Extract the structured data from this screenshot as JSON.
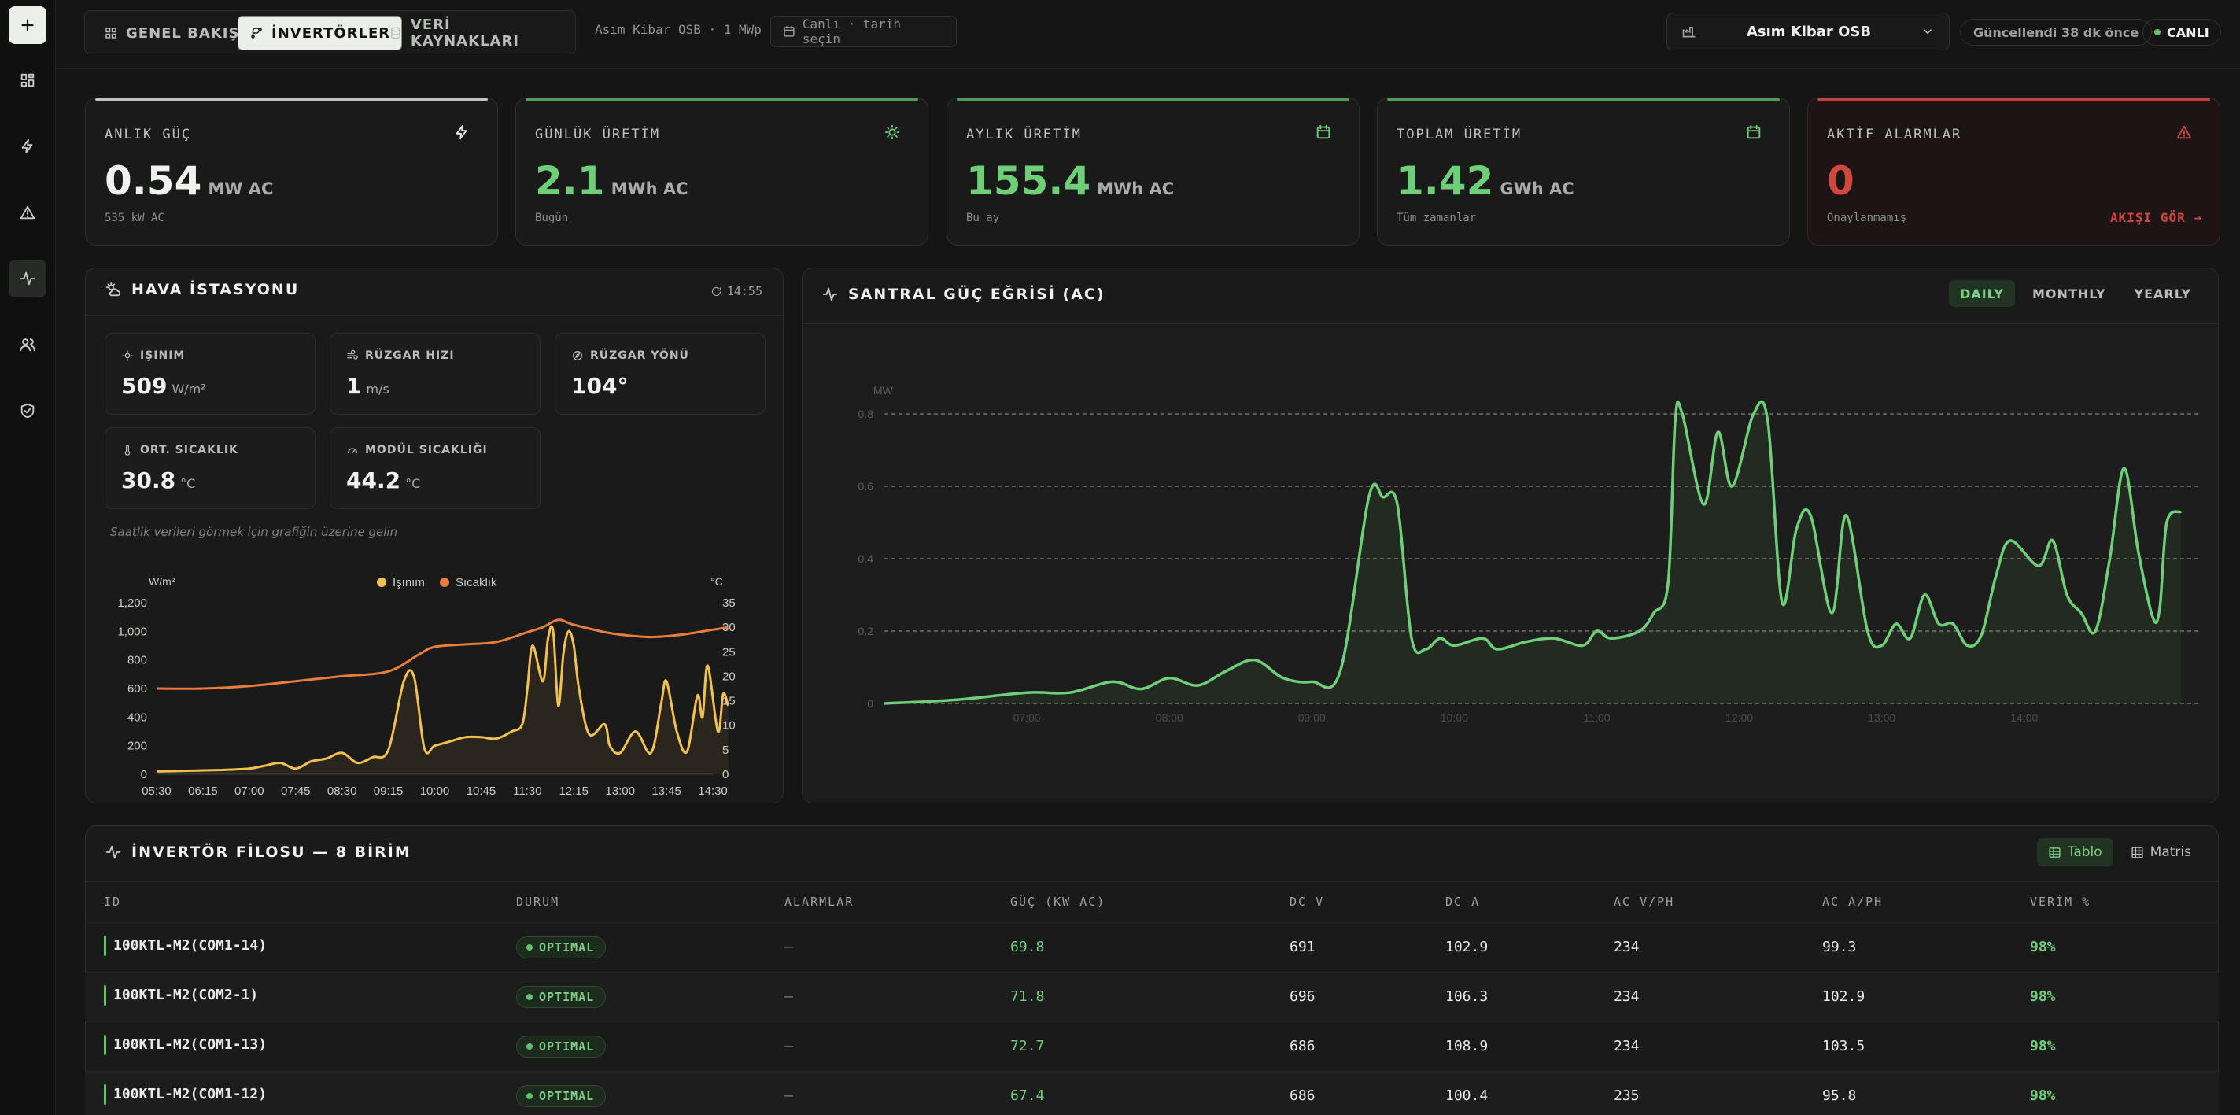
{
  "header": {
    "tabs": [
      {
        "label": "GENEL BAKIŞ",
        "icon": "grid-icon"
      },
      {
        "label": "İNVERTÖRLER",
        "icon": "branch-icon",
        "active": true
      },
      {
        "label": "VERİ KAYNAKLARI",
        "icon": "database-icon"
      }
    ],
    "site_info": "Asım Kibar OSB · 1 MWp",
    "date_filter": "Canlı · tarih seçin",
    "plant_select": "Asım Kibar OSB",
    "updated": "Güncellendi 38 dk önce",
    "live": "CANLI"
  },
  "kpis": [
    {
      "title": "ANLIK GÜÇ",
      "value": "0.54",
      "unit": "MW AC",
      "sub": "535 kW AC",
      "icon": "bolt-icon",
      "color": "#f0f2ef"
    },
    {
      "title": "GÜNLÜK ÜRETİM",
      "value": "2.1",
      "unit": "MWh AC",
      "sub": "Bugün",
      "icon": "sun-icon",
      "color": "#6fcf79"
    },
    {
      "title": "AYLIK ÜRETİM",
      "value": "155.4",
      "unit": "MWh AC",
      "sub": "Bu ay",
      "icon": "calendar-icon",
      "color": "#6fcf79"
    },
    {
      "title": "TOPLAM ÜRETİM",
      "value": "1.42",
      "unit": "GWh AC",
      "sub": "Tüm zamanlar",
      "icon": "calendar-icon",
      "color": "#6fcf79"
    },
    {
      "title": "AKTİF ALARMLAR",
      "value": "0",
      "unit": "",
      "sub": "Onaylanmamış",
      "link": "AKIŞI GÖR →",
      "icon": "alert-icon",
      "color": "#d1463f"
    }
  ],
  "weather": {
    "title": "HAVA İSTASYONU",
    "time": "14:55",
    "cards": [
      {
        "label": "IŞINIM",
        "value": "509",
        "unit": "W/m²",
        "icon": "sun-icon"
      },
      {
        "label": "RÜZGAR HIZI",
        "value": "1",
        "unit": "m/s",
        "icon": "wind-icon"
      },
      {
        "label": "RÜZGAR YÖNÜ",
        "value": "104°",
        "unit": "",
        "icon": "compass-icon"
      },
      {
        "label": "ORT. SICAKLIK",
        "value": "30.8",
        "unit": "°C",
        "icon": "thermometer-icon"
      },
      {
        "label": "MODÜL SICAKLIĞI",
        "value": "44.2",
        "unit": "°C",
        "icon": "gauge-icon"
      }
    ],
    "hint": "Saatlik verileri görmek için grafiğin üzerine gelin"
  },
  "power_curve": {
    "title": "SANTRAL GÜÇ EĞRİSİ (AC)",
    "range_tabs": [
      "DAILY",
      "MONTHLY",
      "YEARLY"
    ],
    "active_range": "DAILY"
  },
  "fleet": {
    "title": "İNVERTÖR FİLOSU — 8 BİRİM",
    "view_tabs": [
      "Tablo",
      "Matris"
    ],
    "columns": [
      "ID",
      "DURUM",
      "ALARMLAR",
      "GÜÇ (KW AC)",
      "DC V",
      "DC A",
      "AC V/PH",
      "AC A/PH",
      "VERİM %"
    ],
    "rows": [
      [
        "100KTL-M2(COM1-14)",
        "OPTIMAL",
        "—",
        "69.8",
        "691",
        "102.9",
        "234",
        "99.3",
        "98%"
      ],
      [
        "100KTL-M2(COM2-1)",
        "OPTIMAL",
        "—",
        "71.8",
        "696",
        "106.3",
        "234",
        "102.9",
        "98%"
      ],
      [
        "100KTL-M2(COM1-13)",
        "OPTIMAL",
        "—",
        "72.7",
        "686",
        "108.9",
        "234",
        "103.5",
        "98%"
      ],
      [
        "100KTL-M2(COM1-12)",
        "OPTIMAL",
        "—",
        "67.4",
        "686",
        "100.4",
        "235",
        "95.8",
        "98%"
      ]
    ]
  },
  "chart_data": [
    {
      "type": "line",
      "title": "",
      "legend": [
        "Işınım",
        "Sıcaklık"
      ],
      "y_left_label": "W/m²",
      "y_right_label": "°C",
      "ylim_left": [
        0,
        1200
      ],
      "ylim_right": [
        0,
        35
      ],
      "x_ticks": [
        "05:30",
        "06:15",
        "07:00",
        "07:45",
        "08:30",
        "09:15",
        "10:00",
        "10:45",
        "11:30",
        "12:15",
        "13:00",
        "13:45",
        "14:30"
      ],
      "y_left_ticks": [
        "0",
        "200",
        "400",
        "600",
        "800",
        "1,000",
        "1,200"
      ],
      "y_right_ticks": [
        "0",
        "5",
        "10",
        "15",
        "20",
        "25",
        "30",
        "35"
      ],
      "series": [
        {
          "name": "Işınım",
          "color": "#f2c04e",
          "x": [
            "05:30",
            "06:00",
            "06:30",
            "07:00",
            "07:15",
            "07:30",
            "07:45",
            "08:00",
            "08:15",
            "08:30",
            "08:45",
            "09:00",
            "09:15",
            "09:30",
            "09:40",
            "09:50",
            "10:00",
            "10:15",
            "10:30",
            "10:45",
            "11:00",
            "11:15",
            "11:25",
            "11:30",
            "11:35",
            "11:45",
            "11:50",
            "11:55",
            "12:00",
            "12:05",
            "12:10",
            "12:15",
            "12:20",
            "12:30",
            "12:45",
            "12:50",
            "13:00",
            "13:15",
            "13:30",
            "13:40",
            "13:45",
            "13:55",
            "14:05",
            "14:15",
            "14:20",
            "14:25",
            "14:35",
            "14:40",
            "14:45"
          ],
          "values": [
            20,
            25,
            30,
            40,
            60,
            80,
            40,
            90,
            110,
            150,
            80,
            120,
            170,
            650,
            680,
            180,
            200,
            230,
            260,
            260,
            250,
            300,
            350,
            600,
            900,
            650,
            950,
            1000,
            480,
            850,
            1000,
            900,
            600,
            280,
            350,
            200,
            150,
            300,
            150,
            500,
            650,
            300,
            160,
            550,
            400,
            760,
            300,
            560,
            480
          ]
        },
        {
          "name": "Sıcaklık",
          "color": "#e87d3e",
          "x": [
            "05:30",
            "06:15",
            "07:00",
            "07:45",
            "08:30",
            "09:15",
            "09:45",
            "10:00",
            "10:30",
            "11:00",
            "11:30",
            "11:45",
            "12:00",
            "12:15",
            "12:45",
            "13:00",
            "13:30",
            "14:00",
            "14:30",
            "14:45"
          ],
          "values": [
            17.5,
            17.5,
            18,
            19,
            20,
            21,
            24.5,
            26,
            26.5,
            27,
            29,
            30,
            31.5,
            30.5,
            29,
            28.5,
            28,
            28.5,
            29.5,
            30
          ]
        }
      ]
    },
    {
      "type": "area",
      "title": "SANTRAL GÜÇ EĞRİSİ (AC)",
      "ylabel": "MW",
      "ylim": [
        0,
        0.8
      ],
      "y_ticks": [
        "0",
        "0.2",
        "0.4",
        "0.6",
        "0.8"
      ],
      "x_ticks": [
        "07:00",
        "08:00",
        "09:00",
        "10:00",
        "11:00",
        "12:00",
        "13:00",
        "14:00"
      ],
      "series": [
        {
          "name": "",
          "color": "#6fcf79",
          "x": [
            6.0,
            6.5,
            7.0,
            7.3,
            7.6,
            7.8,
            8.0,
            8.2,
            8.4,
            8.6,
            8.8,
            9.0,
            9.2,
            9.4,
            9.5,
            9.6,
            9.7,
            9.8,
            9.9,
            10.0,
            10.2,
            10.3,
            10.5,
            10.7,
            10.9,
            11.0,
            11.1,
            11.3,
            11.4,
            11.5,
            11.55,
            11.6,
            11.75,
            11.85,
            11.95,
            12.1,
            12.2,
            12.3,
            12.4,
            12.5,
            12.65,
            12.75,
            12.9,
            13.0,
            13.1,
            13.2,
            13.3,
            13.4,
            13.5,
            13.6,
            13.7,
            13.8,
            13.9,
            14.1,
            14.2,
            14.3,
            14.4,
            14.5,
            14.6,
            14.7,
            14.8,
            14.9,
            14.95,
            15.0,
            15.1
          ],
          "values": [
            0,
            0.01,
            0.03,
            0.03,
            0.06,
            0.04,
            0.07,
            0.05,
            0.09,
            0.12,
            0.07,
            0.06,
            0.09,
            0.57,
            0.57,
            0.55,
            0.18,
            0.15,
            0.18,
            0.16,
            0.18,
            0.15,
            0.17,
            0.18,
            0.16,
            0.2,
            0.18,
            0.2,
            0.25,
            0.33,
            0.78,
            0.8,
            0.55,
            0.75,
            0.6,
            0.8,
            0.78,
            0.28,
            0.48,
            0.52,
            0.25,
            0.52,
            0.2,
            0.16,
            0.22,
            0.18,
            0.3,
            0.22,
            0.22,
            0.16,
            0.19,
            0.35,
            0.45,
            0.38,
            0.45,
            0.3,
            0.25,
            0.2,
            0.4,
            0.65,
            0.42,
            0.24,
            0.26,
            0.5,
            0.53
          ]
        }
      ]
    }
  ]
}
